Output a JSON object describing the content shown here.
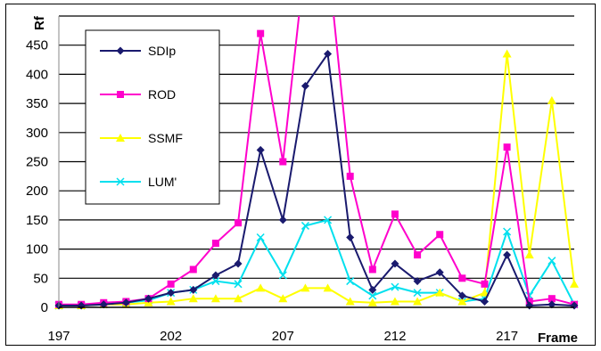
{
  "chart_data": {
    "type": "line",
    "title": "",
    "xlabel": "Frame",
    "ylabel": "Rf",
    "x": [
      197,
      198,
      199,
      200,
      201,
      202,
      203,
      204,
      205,
      206,
      207,
      208,
      209,
      210,
      211,
      212,
      213,
      214,
      215,
      216,
      217,
      218,
      219,
      220
    ],
    "xticks": [
      197,
      202,
      207,
      212,
      217
    ],
    "yticks": [
      0,
      50,
      100,
      150,
      200,
      250,
      300,
      350,
      400,
      450
    ],
    "xlim": [
      197,
      220
    ],
    "ylim": [
      0,
      500
    ],
    "grid": true,
    "legend_position": "top-left",
    "series": [
      {
        "name": "SDIp",
        "color": "#1a1a6e",
        "marker": "diamond",
        "values": [
          3,
          3,
          5,
          8,
          15,
          25,
          30,
          55,
          75,
          270,
          150,
          380,
          435,
          120,
          30,
          75,
          45,
          60,
          20,
          10,
          90,
          3,
          5,
          3
        ]
      },
      {
        "name": "ROD",
        "color": "#ff00cc",
        "marker": "square",
        "values": [
          5,
          5,
          8,
          10,
          15,
          40,
          65,
          110,
          145,
          470,
          250,
          600,
          600,
          225,
          65,
          160,
          90,
          125,
          50,
          40,
          275,
          10,
          15,
          5
        ]
      },
      {
        "name": "SSMF",
        "color": "#ffff00",
        "marker": "triangle",
        "values": [
          3,
          3,
          5,
          5,
          8,
          10,
          15,
          15,
          15,
          33,
          15,
          33,
          33,
          10,
          8,
          10,
          10,
          25,
          10,
          25,
          435,
          90,
          355,
          40
        ]
      },
      {
        "name": "LUM'",
        "color": "#00e0ee",
        "marker": "x",
        "values": [
          3,
          3,
          5,
          8,
          12,
          25,
          30,
          45,
          40,
          120,
          55,
          140,
          150,
          45,
          20,
          35,
          25,
          25,
          10,
          15,
          130,
          20,
          80,
          5
        ]
      }
    ]
  }
}
